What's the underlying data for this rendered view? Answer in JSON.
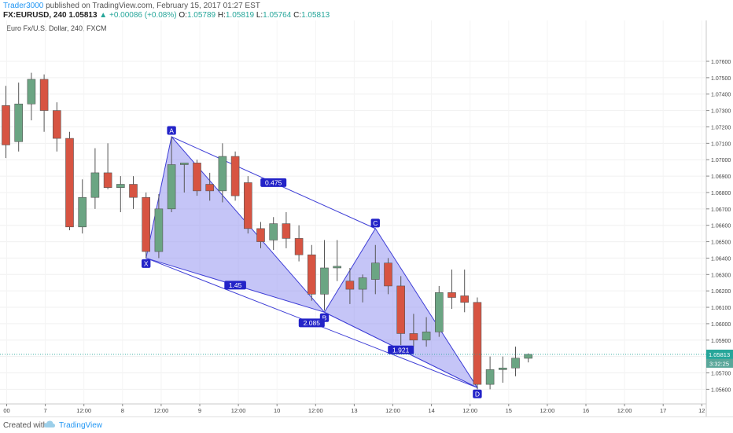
{
  "header": {
    "author": "Trader3000",
    "published": " published on TradingView.com, February 15, 2017 01:27 EST",
    "symbol": "FX:EURUSD, 240",
    "last": "1.05813",
    "change": "▲ +0.00086 (+0.08%)",
    "o_label": "O:",
    "o": "1.05789",
    "h_label": "H:",
    "h": "1.05819",
    "l_label": "L:",
    "l": "1.05764",
    "c_label": "C:",
    "c": "1.05813"
  },
  "footer": {
    "created": "Created with",
    "brand": "TradingView"
  },
  "chart_data": {
    "type": "candlestick",
    "title": "Euro Fx/U.S. Dollar, 240, FXCM",
    "ylim": [
      1.0553,
      1.0783
    ],
    "y_ticks": [
      "1.07600",
      "1.07500",
      "1.07400",
      "1.07300",
      "1.07200",
      "1.07100",
      "1.07000",
      "1.06900",
      "1.06800",
      "1.06700",
      "1.06600",
      "1.06500",
      "1.06400",
      "1.06300",
      "1.06200",
      "1.06100",
      "1.06000",
      "1.05900",
      "1.05800",
      "1.05700",
      "1.05600"
    ],
    "x_ticks": [
      "00",
      "7",
      "12:00",
      "8",
      "12:00",
      "9",
      "12:00",
      "10",
      "12:00",
      "13",
      "12:00",
      "14",
      "12:00",
      "15",
      "12:00",
      "16",
      "12:00",
      "17",
      "12"
    ],
    "candles": [
      {
        "o": 1.0733,
        "h": 1.0745,
        "l": 1.0701,
        "c": 1.0709
      },
      {
        "o": 1.0711,
        "h": 1.0747,
        "l": 1.0705,
        "c": 1.0734
      },
      {
        "o": 1.0734,
        "h": 1.0753,
        "l": 1.0724,
        "c": 1.0749
      },
      {
        "o": 1.0749,
        "h": 1.0752,
        "l": 1.0717,
        "c": 1.073
      },
      {
        "o": 1.073,
        "h": 1.0735,
        "l": 1.0705,
        "c": 1.0713
      },
      {
        "o": 1.0713,
        "h": 1.0717,
        "l": 1.0657,
        "c": 1.0659
      },
      {
        "o": 1.0659,
        "h": 1.0688,
        "l": 1.0655,
        "c": 1.0677
      },
      {
        "o": 1.0677,
        "h": 1.0707,
        "l": 1.067,
        "c": 1.0692
      },
      {
        "o": 1.0692,
        "h": 1.071,
        "l": 1.0682,
        "c": 1.0683
      },
      {
        "o": 1.0683,
        "h": 1.069,
        "l": 1.0668,
        "c": 1.0685
      },
      {
        "o": 1.0685,
        "h": 1.069,
        "l": 1.067,
        "c": 1.0677
      },
      {
        "o": 1.0677,
        "h": 1.068,
        "l": 1.064,
        "c": 1.0644
      },
      {
        "o": 1.0644,
        "h": 1.0679,
        "l": 1.064,
        "c": 1.067
      },
      {
        "o": 1.067,
        "h": 1.0714,
        "l": 1.0668,
        "c": 1.0697
      },
      {
        "o": 1.0697,
        "h": 1.0698,
        "l": 1.068,
        "c": 1.0698
      },
      {
        "o": 1.0698,
        "h": 1.07,
        "l": 1.0678,
        "c": 1.0681
      },
      {
        "o": 1.0685,
        "h": 1.0692,
        "l": 1.0675,
        "c": 1.0681
      },
      {
        "o": 1.0681,
        "h": 1.071,
        "l": 1.0674,
        "c": 1.0702
      },
      {
        "o": 1.0702,
        "h": 1.0705,
        "l": 1.0675,
        "c": 1.0678
      },
      {
        "o": 1.0686,
        "h": 1.069,
        "l": 1.0655,
        "c": 1.0658
      },
      {
        "o": 1.0658,
        "h": 1.0662,
        "l": 1.0646,
        "c": 1.065
      },
      {
        "o": 1.0651,
        "h": 1.0665,
        "l": 1.0645,
        "c": 1.0661
      },
      {
        "o": 1.0661,
        "h": 1.0668,
        "l": 1.0646,
        "c": 1.0652
      },
      {
        "o": 1.0652,
        "h": 1.066,
        "l": 1.0638,
        "c": 1.0642
      },
      {
        "o": 1.0642,
        "h": 1.0648,
        "l": 1.0614,
        "c": 1.0618
      },
      {
        "o": 1.0618,
        "h": 1.0651,
        "l": 1.0608,
        "c": 1.0634
      },
      {
        "o": 1.0634,
        "h": 1.0651,
        "l": 1.0626,
        "c": 1.0635
      },
      {
        "o": 1.0626,
        "h": 1.0634,
        "l": 1.0612,
        "c": 1.0621
      },
      {
        "o": 1.0621,
        "h": 1.063,
        "l": 1.0613,
        "c": 1.0628
      },
      {
        "o": 1.0627,
        "h": 1.0648,
        "l": 1.0618,
        "c": 1.0637
      },
      {
        "o": 1.0637,
        "h": 1.064,
        "l": 1.0618,
        "c": 1.0623
      },
      {
        "o": 1.0623,
        "h": 1.0629,
        "l": 1.0587,
        "c": 1.0594
      },
      {
        "o": 1.0594,
        "h": 1.0606,
        "l": 1.0586,
        "c": 1.059
      },
      {
        "o": 1.059,
        "h": 1.0604,
        "l": 1.0586,
        "c": 1.0595
      },
      {
        "o": 1.0595,
        "h": 1.0623,
        "l": 1.0592,
        "c": 1.0619
      },
      {
        "o": 1.0619,
        "h": 1.0633,
        "l": 1.0609,
        "c": 1.0616
      },
      {
        "o": 1.0617,
        "h": 1.0633,
        "l": 1.0607,
        "c": 1.0613
      },
      {
        "o": 1.0613,
        "h": 1.0616,
        "l": 1.056,
        "c": 1.0563
      },
      {
        "o": 1.0563,
        "h": 1.058,
        "l": 1.056,
        "c": 1.0572
      },
      {
        "o": 1.0572,
        "h": 1.058,
        "l": 1.0564,
        "c": 1.0573
      },
      {
        "o": 1.0573,
        "h": 1.0586,
        "l": 1.0568,
        "c": 1.0579
      },
      {
        "o": 1.05789,
        "h": 1.05819,
        "l": 1.05764,
        "c": 1.05813
      }
    ],
    "harmonic": {
      "X": {
        "idx": 11,
        "price": 1.064,
        "label": "X"
      },
      "A": {
        "idx": 13,
        "price": 1.0714,
        "label": "A"
      },
      "B": {
        "idx": 25,
        "price": 1.0607,
        "label": "B"
      },
      "C": {
        "idx": 29,
        "price": 1.0658,
        "label": "C"
      },
      "D": {
        "idx": 37,
        "price": 1.0561,
        "label": "D"
      },
      "ratios": {
        "XB": "1.45",
        "AC": "0.475",
        "XD": "2.085",
        "BD": "1.921"
      }
    },
    "last_price": {
      "value": 1.05813,
      "label": "1.05813",
      "countdown": "3:32:25"
    },
    "colors": {
      "up": "#6ba583",
      "down": "#d75442",
      "pattern_line": "#3f3fd6",
      "pattern_fill": "#8c8cf0",
      "last_price": "#26a69a"
    }
  }
}
